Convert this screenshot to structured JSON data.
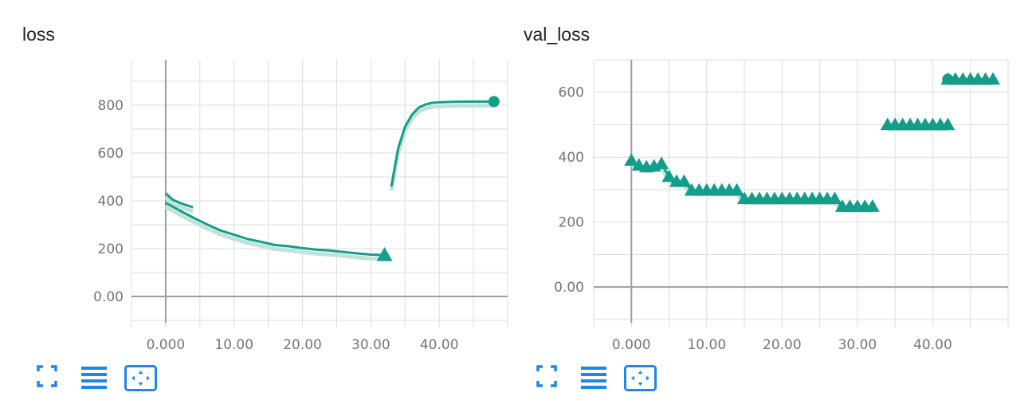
{
  "colors": {
    "series": "#129e88",
    "series_light": "#bfe3dc",
    "grid": "#dcdcdc",
    "axis": "#9e9e9e",
    "tick_text": "#757575",
    "toolbar_icon": "#1e88e5"
  },
  "cards": [
    {
      "title": "loss",
      "toolbar": [
        "fullscreen-icon",
        "list-lines-icon",
        "fit-domain-icon"
      ]
    },
    {
      "title": "val_loss",
      "toolbar": [
        "fullscreen-icon",
        "list-lines-icon",
        "fit-domain-icon"
      ]
    }
  ],
  "chart_data": [
    {
      "type": "line",
      "title": "loss",
      "xlim": [
        -5,
        50
      ],
      "ylim": [
        -110,
        990
      ],
      "x_ticks": [
        "0.000",
        "10.00",
        "20.00",
        "30.00",
        "40.00"
      ],
      "x_tick_values": [
        0,
        10,
        20,
        30,
        40
      ],
      "y_ticks": [
        "0.00",
        "200",
        "400",
        "600",
        "800"
      ],
      "y_tick_values": [
        0,
        200,
        400,
        600,
        800
      ],
      "grid": true,
      "series": [
        {
          "x": [
            0,
            1,
            2,
            3,
            4
          ],
          "y": [
            432,
            405,
            392,
            382,
            373
          ]
        },
        {
          "x": [
            0,
            2,
            4,
            6,
            8,
            10,
            12,
            14,
            16,
            18,
            20,
            22,
            24,
            26,
            28,
            30,
            32
          ],
          "y": [
            392,
            360,
            330,
            302,
            276,
            258,
            240,
            228,
            215,
            210,
            202,
            196,
            192,
            186,
            180,
            175,
            173
          ],
          "end_marker": "triangle"
        },
        {
          "x": [
            33,
            34,
            35,
            36,
            37,
            38,
            39,
            40,
            42,
            44,
            46,
            48
          ],
          "y": [
            460,
            620,
            710,
            760,
            790,
            803,
            810,
            812,
            814,
            815,
            815,
            815
          ],
          "end_marker": "circle"
        }
      ]
    },
    {
      "type": "line",
      "title": "val_loss",
      "xlim": [
        -5,
        50
      ],
      "ylim": [
        -110,
        700
      ],
      "x_ticks": [
        "0.000",
        "10.00",
        "20.00",
        "30.00",
        "40.00"
      ],
      "x_tick_values": [
        0,
        10,
        20,
        30,
        40
      ],
      "y_ticks": [
        "0.00",
        "200",
        "400",
        "600"
      ],
      "y_tick_values": [
        0,
        200,
        400,
        600
      ],
      "grid": true,
      "series": [
        {
          "x": [
            0,
            1,
            2,
            3,
            4,
            5,
            6,
            7,
            8,
            9,
            10,
            11,
            12,
            13,
            14,
            15,
            16,
            17,
            18,
            19,
            20,
            21,
            22,
            23,
            24,
            25,
            26,
            27,
            28,
            29,
            30,
            31,
            32
          ],
          "y": [
            390,
            375,
            370,
            372,
            380,
            340,
            325,
            325,
            298,
            298,
            298,
            298,
            298,
            298,
            298,
            272,
            272,
            272,
            272,
            272,
            272,
            272,
            272,
            272,
            272,
            272,
            272,
            272,
            248,
            248,
            248,
            248,
            248
          ],
          "marker": "triangle"
        },
        {
          "x": [
            34,
            35,
            36,
            37,
            38,
            39,
            40,
            41,
            42
          ],
          "y": [
            500,
            500,
            500,
            500,
            500,
            500,
            500,
            500,
            500
          ],
          "marker": "triangle"
        },
        {
          "x": [
            42,
            43,
            44,
            45,
            46,
            47,
            48
          ],
          "y": [
            640,
            640,
            640,
            640,
            640,
            640,
            640
          ],
          "marker": "triangle",
          "start_marker": "circle"
        }
      ]
    }
  ]
}
